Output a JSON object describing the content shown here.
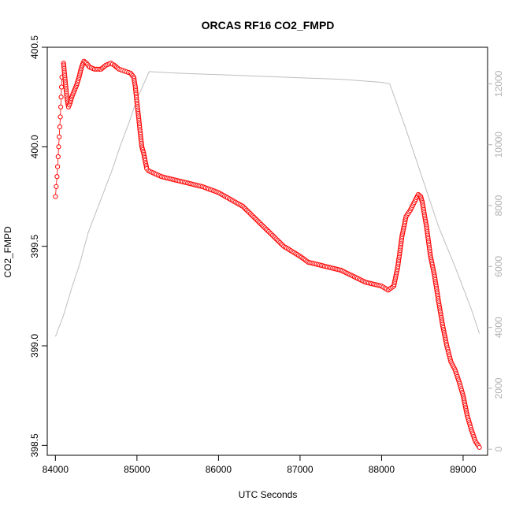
{
  "chart_data": {
    "type": "scatter",
    "title": "ORCAS RF16 CO2_FMPD",
    "xlabel": "UTC Seconds",
    "ylabel": "CO2_FMPD",
    "xlim": [
      83900,
      89300
    ],
    "ylim": [
      398.45,
      400.5
    ],
    "y2lim": [
      -200,
      13200
    ],
    "x_ticks": [
      "84000",
      "85000",
      "86000",
      "87000",
      "88000",
      "89000"
    ],
    "y_ticks": [
      "398.5",
      "399.0",
      "399.5",
      "400.0",
      "400.5"
    ],
    "y2_ticks": [
      "0",
      "2000",
      "4000",
      "6000",
      "8000",
      "10000",
      "12000"
    ],
    "grid": false,
    "legend": "none",
    "colors": {
      "co2": "#ff0000",
      "altitude": "#bebebe",
      "axes": "#000000",
      "right_axis": "#b0b0b0"
    },
    "series": [
      {
        "role": "co2_points",
        "axis": "left",
        "marker": "open-circle",
        "connect_sparse": true,
        "x": [
          84000,
          84020,
          84040,
          84060,
          84080,
          84100,
          84120,
          84140,
          84160,
          84180,
          84200,
          84230,
          84260,
          84290,
          84320,
          84350,
          84380,
          84420,
          84480,
          84560,
          84620,
          84680,
          84720,
          84780,
          84850,
          84920,
          84960,
          84980,
          85000,
          85020,
          85040,
          85060,
          85080,
          85100,
          85120,
          85140,
          85300,
          85500,
          85800,
          86000,
          86300,
          86600,
          86800,
          87000,
          87100,
          87300,
          87500,
          87650,
          87800,
          88000,
          88080,
          88150,
          88200,
          88250,
          88300,
          88350,
          88400,
          88450,
          88480,
          88500,
          88550,
          88600,
          88650,
          88700,
          88750,
          88800,
          88850,
          88900,
          88950,
          89000,
          89050,
          89100,
          89150,
          89200
        ],
        "y": [
          399.75,
          399.85,
          400.0,
          400.15,
          400.35,
          400.42,
          400.33,
          400.25,
          400.2,
          400.22,
          400.25,
          400.28,
          400.31,
          400.35,
          400.4,
          400.43,
          400.42,
          400.4,
          400.39,
          400.39,
          400.41,
          400.42,
          400.41,
          400.39,
          400.38,
          400.37,
          400.35,
          400.3,
          400.22,
          400.15,
          400.07,
          400.0,
          399.97,
          399.93,
          399.89,
          399.88,
          399.85,
          399.83,
          399.8,
          399.77,
          399.7,
          399.58,
          399.5,
          399.45,
          399.42,
          399.4,
          399.38,
          399.35,
          399.32,
          399.3,
          399.28,
          399.3,
          399.4,
          399.55,
          399.65,
          399.68,
          399.72,
          399.76,
          399.75,
          399.72,
          399.6,
          399.45,
          399.35,
          399.22,
          399.1,
          399.0,
          398.92,
          398.88,
          398.82,
          398.75,
          398.65,
          398.58,
          398.52,
          398.49
        ]
      },
      {
        "role": "altitude_line",
        "axis": "right",
        "x": [
          84000,
          84100,
          84200,
          84300,
          84400,
          84500,
          84600,
          84700,
          84800,
          84900,
          85000,
          85150,
          85500,
          86000,
          86500,
          87000,
          87500,
          88000,
          88100,
          88300,
          88500,
          88700,
          88900,
          89100,
          89200
        ],
        "y": [
          3700,
          4400,
          5300,
          6100,
          7100,
          7800,
          8500,
          9200,
          10000,
          10700,
          11500,
          12400,
          12350,
          12300,
          12250,
          12200,
          12150,
          12050,
          12000,
          10500,
          8900,
          7300,
          6000,
          4600,
          3800
        ]
      }
    ]
  }
}
